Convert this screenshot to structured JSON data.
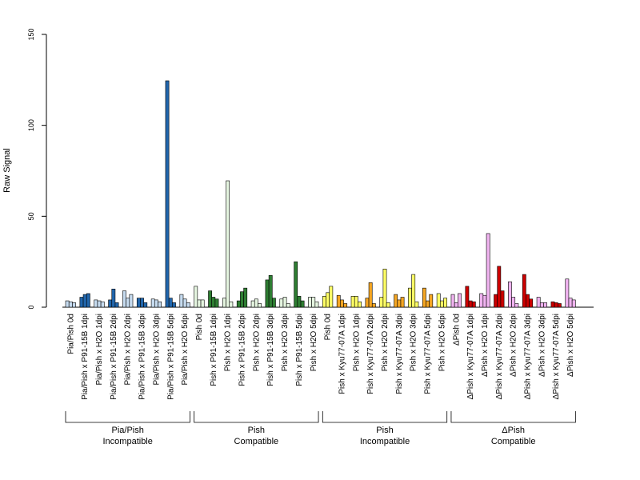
{
  "chart_data": {
    "type": "bar",
    "title": "",
    "xlabel": "",
    "ylabel": "Raw Signal",
    "ylim": [
      0,
      150
    ],
    "yticks": [
      0,
      50,
      100,
      150
    ],
    "grid": false,
    "groups": [
      {
        "label": "Pia/Pish 0d",
        "bar_color": "#c6dbef",
        "values": [
          3.5,
          3,
          2.5
        ]
      },
      {
        "label": "Pia/Pish x P91-15B 1dpi",
        "bar_color": "#2166ac",
        "values": [
          5.5,
          7,
          7.5
        ]
      },
      {
        "label": "Pia/Pish x H2O 1dpi",
        "bar_color": "#c6dbef",
        "values": [
          4,
          3.5,
          3
        ]
      },
      {
        "label": "Pia/Pish x P91-15B 2dpi",
        "bar_color": "#2166ac",
        "values": [
          4,
          10,
          2.5
        ]
      },
      {
        "label": "Pia/Pish x H2O 2dpi",
        "bar_color": "#c6dbef",
        "values": [
          9,
          5,
          7
        ]
      },
      {
        "label": "Pia/Pish x P91-15B 3dpi",
        "bar_color": "#2166ac",
        "values": [
          5,
          5,
          2.5
        ]
      },
      {
        "label": "Pia/Pish x H2O 3dpi",
        "bar_color": "#c6dbef",
        "values": [
          4.5,
          4,
          3
        ]
      },
      {
        "label": "Pia/Pish x P91-15B 5dpi",
        "bar_color": "#2166ac",
        "values": [
          124.5,
          5,
          2.5
        ]
      },
      {
        "label": "Pia/Pish x H2O 5dpi",
        "bar_color": "#c6dbef",
        "values": [
          7,
          4.5,
          2.5
        ]
      },
      {
        "label": "Pish 0d",
        "bar_color": "#e5f5e0",
        "values": [
          11.5,
          4,
          4
        ]
      },
      {
        "label": "Pish x P91-15B 1dpi",
        "bar_color": "#2e7d32",
        "values": [
          9,
          5.5,
          4.5
        ]
      },
      {
        "label": "Pish x H2O 1dpi",
        "bar_color": "#e5f5e0",
        "values": [
          5,
          69.5,
          3
        ]
      },
      {
        "label": "Pish x P91-15B 2dpi",
        "bar_color": "#2e7d32",
        "values": [
          3.5,
          8.5,
          10.5
        ]
      },
      {
        "label": "Pish x H2O 2dpi",
        "bar_color": "#e5f5e0",
        "values": [
          3.5,
          4.5,
          2
        ]
      },
      {
        "label": "Pish x P91-15B 3dpi",
        "bar_color": "#2e7d32",
        "values": [
          15,
          17.5,
          5
        ]
      },
      {
        "label": "Pish x H2O 3dpi",
        "bar_color": "#e5f5e0",
        "values": [
          4.5,
          5.5,
          2
        ]
      },
      {
        "label": "Pish x P91-15B 5dpi",
        "bar_color": "#2e7d32",
        "values": [
          25,
          6,
          3.5
        ]
      },
      {
        "label": "Pish x H2O 5dpi",
        "bar_color": "#e5f5e0",
        "values": [
          5.5,
          5.5,
          3
        ]
      },
      {
        "label": "Pish 0d",
        "bar_color": "#ffff66",
        "values": [
          6,
          8,
          11.5
        ]
      },
      {
        "label": "Pish x Kyu77-07A 1dpi",
        "bar_color": "#f5a623",
        "values": [
          6.5,
          4,
          2
        ]
      },
      {
        "label": "Pish x H2O 1dpi",
        "bar_color": "#ffff66",
        "values": [
          6,
          6,
          3
        ]
      },
      {
        "label": "Pish x Kyu77-07A 2dpi",
        "bar_color": "#f5a623",
        "values": [
          5,
          13.5,
          2
        ]
      },
      {
        "label": "Pish x H2O 2dpi",
        "bar_color": "#ffff66",
        "values": [
          5.5,
          21,
          2.5
        ]
      },
      {
        "label": "Pish x Kyu77-07A 3dpi",
        "bar_color": "#f5a623",
        "values": [
          7,
          4,
          5.5
        ]
      },
      {
        "label": "Pish x H2O 3dpi",
        "bar_color": "#ffff66",
        "values": [
          10.5,
          18,
          3
        ]
      },
      {
        "label": "Pish x Kyu77-07A 5dpi",
        "bar_color": "#f5a623",
        "values": [
          10.5,
          3.5,
          7
        ]
      },
      {
        "label": "Pish x H2O 5dpi",
        "bar_color": "#ffff66",
        "values": [
          7.5,
          3.5,
          5
        ]
      },
      {
        "label": "ΔPish 0d",
        "bar_color": "#f0b3f0",
        "values": [
          7,
          2.5,
          7.5
        ]
      },
      {
        "label": "ΔPish x Kyu77-07A 1dpi",
        "bar_color": "#cc0000",
        "values": [
          11.5,
          3.5,
          3
        ]
      },
      {
        "label": "ΔPish x H2O 1dpi",
        "bar_color": "#f0b3f0",
        "values": [
          7.5,
          6.5,
          40.5
        ]
      },
      {
        "label": "ΔPish x Kyu77-07A 2dpi",
        "bar_color": "#cc0000",
        "values": [
          7,
          22.5,
          9
        ]
      },
      {
        "label": "ΔPish x H2O 2dpi",
        "bar_color": "#f0b3f0",
        "values": [
          14,
          5.5,
          2
        ]
      },
      {
        "label": "ΔPish x Kyu77-07A 3dpi",
        "bar_color": "#cc0000",
        "values": [
          18,
          7,
          4.5
        ]
      },
      {
        "label": "ΔPish x H2O 3dpi",
        "bar_color": "#f0b3f0",
        "values": [
          5.5,
          2.5,
          2.5
        ]
      },
      {
        "label": "ΔPish x Kyu77-07A 5dpi",
        "bar_color": "#cc0000",
        "values": [
          3,
          2.5,
          2
        ]
      },
      {
        "label": "ΔPish x H2O 5dpi",
        "bar_color": "#f0b3f0",
        "values": [
          15.5,
          5,
          4
        ]
      }
    ],
    "brackets": [
      {
        "line1": "Pia/Pish",
        "line2": "Incompatible",
        "first_group": 0,
        "last_group": 8
      },
      {
        "line1": "Pish",
        "line2": "Compatible",
        "first_group": 9,
        "last_group": 17
      },
      {
        "line1": "Pish",
        "line2": "Incompatible",
        "first_group": 18,
        "last_group": 26
      },
      {
        "line1": "ΔPish",
        "line2": "Compatible",
        "first_group": 27,
        "last_group": 35
      }
    ]
  }
}
